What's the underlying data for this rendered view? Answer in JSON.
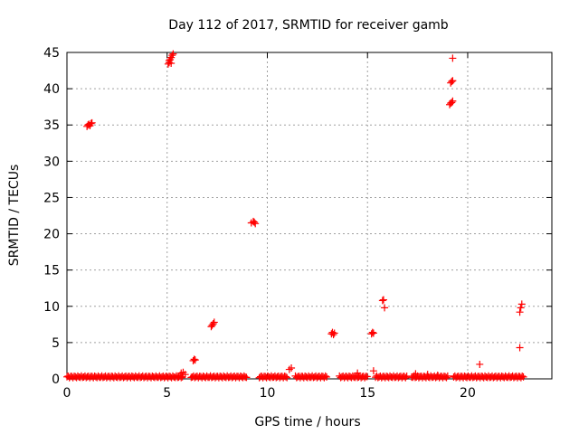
{
  "chart_data": {
    "type": "scatter",
    "title": "Day 112 of 2017, SRMTID for receiver gamb",
    "xlabel": "GPS time / hours",
    "ylabel": "SRMTID / TECUs",
    "xlim": [
      0,
      24.2
    ],
    "ylim": [
      0,
      45
    ],
    "x_ticks": [
      "0",
      "5",
      "10",
      "15",
      "20"
    ],
    "y_ticks": [
      "0",
      "5",
      "10",
      "15",
      "20",
      "25",
      "30",
      "35",
      "40",
      "45"
    ],
    "grid": true,
    "marker": "+",
    "color": "#ff0000",
    "series": [
      {
        "baseline_segments": [
          [
            0.0,
            5.8
          ],
          [
            6.2,
            9.0
          ],
          [
            9.6,
            11.0
          ],
          [
            11.4,
            13.0
          ],
          [
            13.6,
            15.0
          ],
          [
            15.4,
            17.0
          ],
          [
            17.2,
            19.0
          ],
          [
            19.3,
            22.8
          ]
        ],
        "baseline_level": 0.15,
        "points": [
          [
            1.0,
            34.8
          ],
          [
            1.05,
            35.0
          ],
          [
            1.1,
            35.1
          ],
          [
            1.15,
            34.9
          ],
          [
            1.2,
            35.2
          ],
          [
            1.25,
            35.3
          ],
          [
            5.05,
            43.4
          ],
          [
            5.1,
            43.6
          ],
          [
            5.1,
            43.9
          ],
          [
            5.15,
            44.0
          ],
          [
            5.2,
            44.3
          ],
          [
            5.2,
            43.5
          ],
          [
            5.25,
            44.6
          ],
          [
            5.3,
            44.8
          ],
          [
            5.7,
            0.8
          ],
          [
            5.8,
            0.9
          ],
          [
            5.9,
            0.6
          ],
          [
            6.3,
            2.5
          ],
          [
            6.35,
            2.7
          ],
          [
            6.4,
            2.6
          ],
          [
            7.2,
            7.2
          ],
          [
            7.25,
            7.4
          ],
          [
            7.3,
            7.6
          ],
          [
            7.35,
            7.8
          ],
          [
            9.2,
            21.5
          ],
          [
            9.3,
            21.7
          ],
          [
            9.35,
            21.6
          ],
          [
            9.4,
            21.4
          ],
          [
            11.1,
            1.3
          ],
          [
            11.2,
            1.5
          ],
          [
            13.2,
            6.2
          ],
          [
            13.25,
            6.4
          ],
          [
            13.3,
            6.1
          ],
          [
            13.35,
            6.3
          ],
          [
            14.5,
            0.8
          ],
          [
            15.2,
            6.2
          ],
          [
            15.25,
            6.4
          ],
          [
            15.3,
            6.3
          ],
          [
            15.3,
            1.1
          ],
          [
            15.75,
            10.8
          ],
          [
            15.8,
            10.9
          ],
          [
            15.85,
            9.8
          ],
          [
            17.4,
            0.7
          ],
          [
            18.0,
            0.6
          ],
          [
            18.5,
            0.5
          ],
          [
            19.1,
            37.8
          ],
          [
            19.15,
            38.0
          ],
          [
            19.2,
            38.1
          ],
          [
            19.25,
            38.3
          ],
          [
            19.15,
            40.8
          ],
          [
            19.2,
            41.0
          ],
          [
            19.25,
            41.1
          ],
          [
            19.25,
            44.2
          ],
          [
            20.6,
            2.0
          ],
          [
            22.6,
            4.3
          ],
          [
            22.6,
            9.2
          ],
          [
            22.65,
            9.8
          ],
          [
            22.7,
            10.3
          ]
        ]
      }
    ]
  }
}
